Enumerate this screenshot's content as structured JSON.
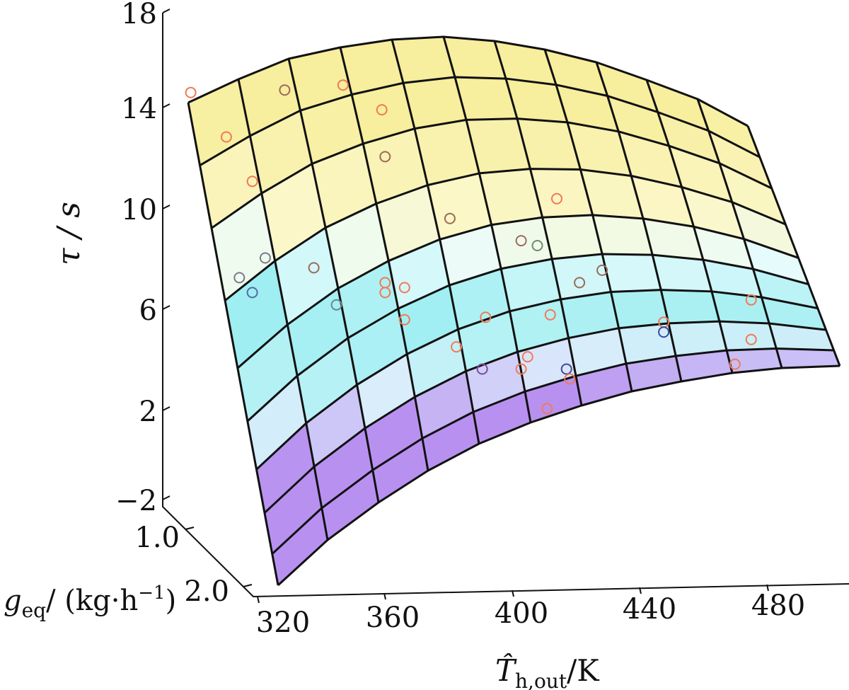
{
  "chart_data": {
    "type": "surface3d",
    "title": "",
    "axes": {
      "x": {
        "title_base": "T̂",
        "title_sub": "h,out",
        "title_unit": "/K",
        "range": [
          310,
          500
        ],
        "ticks": [
          "320",
          "360",
          "400",
          "440",
          "480"
        ],
        "tick_values": [
          320,
          360,
          400,
          440,
          480
        ]
      },
      "y": {
        "title_base": "g",
        "title_sub": "eq",
        "title_unit": "/ (kg·h",
        "title_sup": "−1",
        "title_close": ")",
        "range": [
          0.6,
          2.1
        ],
        "ticks": [
          "1.0",
          "2.0"
        ],
        "tick_values": [
          1.0,
          2.0
        ]
      },
      "z": {
        "title": "τ / s",
        "range": [
          -2,
          18
        ],
        "ticks": [
          "18",
          "14",
          "10",
          "6",
          "2",
          "−2"
        ],
        "tick_values": [
          18,
          14,
          10,
          6,
          2,
          -2
        ]
      }
    },
    "surface": {
      "description_levels": "fitted response surface colored by τ",
      "colormap": [
        {
          "z": -2,
          "color": "#b891f0"
        },
        {
          "z": 1,
          "color": "#dcecfb"
        },
        {
          "z": 3,
          "color": "#b7f2f5"
        },
        {
          "z": 6,
          "color": "#9eeef2"
        },
        {
          "z": 8,
          "color": "#eafcfd"
        },
        {
          "z": 10,
          "color": "#fbf7c8"
        },
        {
          "z": 14,
          "color": "#f7ee9e"
        }
      ]
    },
    "points": [
      {
        "T": 311,
        "tau": 14.6,
        "color": "#f07a55"
      },
      {
        "T": 322,
        "tau": 12.8,
        "color": "#f07a55"
      },
      {
        "T": 330,
        "tau": 11.0,
        "color": "#f07a55"
      },
      {
        "T": 340,
        "tau": 14.7,
        "color": "#9c6a58"
      },
      {
        "T": 358,
        "tau": 14.9,
        "color": "#f07a55"
      },
      {
        "T": 370,
        "tau": 13.9,
        "color": "#f07a55"
      },
      {
        "T": 371,
        "tau": 12.0,
        "color": "#9c6a58"
      },
      {
        "T": 391,
        "tau": 9.5,
        "color": "#9c6a58"
      },
      {
        "T": 424,
        "tau": 10.3,
        "color": "#f07a55"
      },
      {
        "T": 413,
        "tau": 8.6,
        "color": "#9c6a58"
      },
      {
        "T": 418,
        "tau": 8.4,
        "color": "#6c8a6c"
      },
      {
        "T": 438,
        "tau": 7.4,
        "color": "#9c6a58"
      },
      {
        "T": 431,
        "tau": 6.9,
        "color": "#9c6a58"
      },
      {
        "T": 326,
        "tau": 7.1,
        "color": "#7a7a8a"
      },
      {
        "T": 334,
        "tau": 7.9,
        "color": "#7a7a8a"
      },
      {
        "T": 349,
        "tau": 7.5,
        "color": "#9c6a58"
      },
      {
        "T": 330,
        "tau": 6.5,
        "color": "#5a6aa0"
      },
      {
        "T": 356,
        "tau": 6.0,
        "color": "#6a8a8a"
      },
      {
        "T": 371,
        "tau": 6.9,
        "color": "#f07a55"
      },
      {
        "T": 377,
        "tau": 6.7,
        "color": "#f07a55"
      },
      {
        "T": 371,
        "tau": 6.5,
        "color": "#f07a55"
      },
      {
        "T": 377,
        "tau": 5.4,
        "color": "#f07a55"
      },
      {
        "T": 402,
        "tau": 5.5,
        "color": "#f07a55"
      },
      {
        "T": 422,
        "tau": 5.6,
        "color": "#f07a55"
      },
      {
        "T": 393,
        "tau": 4.3,
        "color": "#f07a55"
      },
      {
        "T": 401,
        "tau": 3.4,
        "color": "#7a4aa0"
      },
      {
        "T": 413,
        "tau": 3.4,
        "color": "#f07a55"
      },
      {
        "T": 415,
        "tau": 3.9,
        "color": "#f07a55"
      },
      {
        "T": 427,
        "tau": 3.4,
        "color": "#3a4a9a"
      },
      {
        "T": 428,
        "tau": 3.0,
        "color": "#f07a55"
      },
      {
        "T": 421,
        "tau": 1.8,
        "color": "#f07a55"
      },
      {
        "T": 457,
        "tau": 5.3,
        "color": "#f07a55"
      },
      {
        "T": 457,
        "tau": 4.9,
        "color": "#3a4a9a"
      },
      {
        "T": 484,
        "tau": 6.2,
        "color": "#f07a55"
      },
      {
        "T": 484,
        "tau": 4.6,
        "color": "#f07a55"
      },
      {
        "T": 479,
        "tau": 3.6,
        "color": "#f07a55"
      }
    ]
  }
}
